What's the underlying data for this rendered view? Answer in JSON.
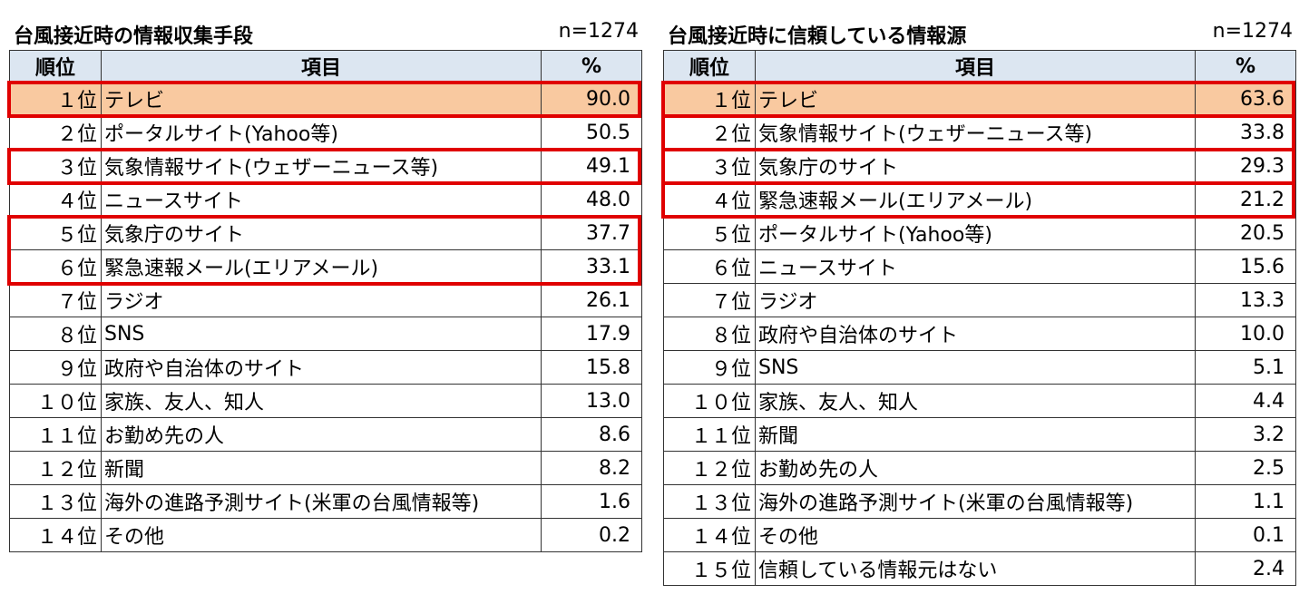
{
  "left": {
    "title": "台風接近時の情報収集手段",
    "n": "n=1274",
    "headers": {
      "rank": "順位",
      "item": "項目",
      "pct": "%"
    },
    "rows": [
      {
        "rank": "１位",
        "item": "テレビ",
        "pct": "90.0"
      },
      {
        "rank": "２位",
        "item": "ポータルサイト(Yahoo等)",
        "pct": "50.5"
      },
      {
        "rank": "３位",
        "item": "気象情報サイト(ウェザーニュース等)",
        "pct": "49.1"
      },
      {
        "rank": "４位",
        "item": "ニュースサイト",
        "pct": "48.0"
      },
      {
        "rank": "５位",
        "item": "気象庁のサイト",
        "pct": "37.7"
      },
      {
        "rank": "６位",
        "item": "緊急速報メール(エリアメール)",
        "pct": "33.1"
      },
      {
        "rank": "７位",
        "item": "ラジオ",
        "pct": "26.1"
      },
      {
        "rank": "８位",
        "item": "SNS",
        "pct": "17.9"
      },
      {
        "rank": "９位",
        "item": "政府や自治体のサイト",
        "pct": "15.8"
      },
      {
        "rank": "１０位",
        "item": "家族、友人、知人",
        "pct": "13.0"
      },
      {
        "rank": "１１位",
        "item": "お勤め先の人",
        "pct": "8.6"
      },
      {
        "rank": "１２位",
        "item": "新聞",
        "pct": "8.2"
      },
      {
        "rank": "１３位",
        "item": "海外の進路予測サイト(米軍の台風情報等)",
        "pct": "1.6"
      },
      {
        "rank": "１４位",
        "item": "その他",
        "pct": "0.2"
      }
    ]
  },
  "right": {
    "title": "台風接近時に信頼している情報源",
    "n": "n=1274",
    "headers": {
      "rank": "順位",
      "item": "項目",
      "pct": "%"
    },
    "rows": [
      {
        "rank": "１位",
        "item": "テレビ",
        "pct": "63.6"
      },
      {
        "rank": "２位",
        "item": "気象情報サイト(ウェザーニュース等)",
        "pct": "33.8"
      },
      {
        "rank": "３位",
        "item": "気象庁のサイト",
        "pct": "29.3"
      },
      {
        "rank": "４位",
        "item": "緊急速報メール(エリアメール)",
        "pct": "21.2"
      },
      {
        "rank": "５位",
        "item": "ポータルサイト(Yahoo等)",
        "pct": "20.5"
      },
      {
        "rank": "６位",
        "item": "ニュースサイト",
        "pct": "15.6"
      },
      {
        "rank": "７位",
        "item": "ラジオ",
        "pct": "13.3"
      },
      {
        "rank": "８位",
        "item": "政府や自治体のサイト",
        "pct": "10.0"
      },
      {
        "rank": "９位",
        "item": "SNS",
        "pct": "5.1"
      },
      {
        "rank": "１０位",
        "item": "家族、友人、知人",
        "pct": "4.4"
      },
      {
        "rank": "１１位",
        "item": "新聞",
        "pct": "3.2"
      },
      {
        "rank": "１２位",
        "item": "お勤め先の人",
        "pct": "2.5"
      },
      {
        "rank": "１３位",
        "item": "海外の進路予測サイト(米軍の台風情報等)",
        "pct": "1.1"
      },
      {
        "rank": "１４位",
        "item": "その他",
        "pct": "0.1"
      },
      {
        "rank": "１５位",
        "item": "信頼している情報元はない",
        "pct": "2.4"
      }
    ]
  },
  "colors": {
    "header_bg": "#dce6f1",
    "highlight_row": "#f9c9a0",
    "highlight_box": "#e00000"
  }
}
